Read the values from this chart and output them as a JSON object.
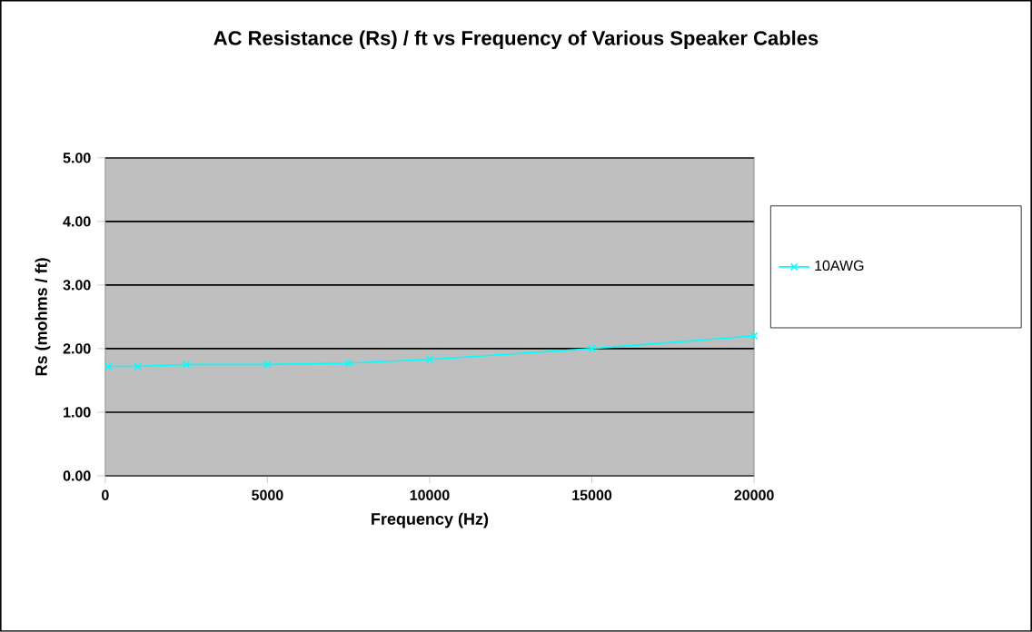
{
  "chart_data": {
    "type": "line",
    "title": "AC Resistance (Rs) / ft  vs Frequency of Various Speaker Cables",
    "xlabel": "Frequency (Hz)",
    "ylabel": "Rs (mohms / ft)",
    "series": [
      {
        "name": "10AWG",
        "color": "#00ffff",
        "x": [
          100,
          1000,
          2500,
          5000,
          7500,
          10000,
          15000,
          20000
        ],
        "values": [
          1.72,
          1.72,
          1.75,
          1.75,
          1.77,
          1.83,
          2.0,
          2.2
        ]
      }
    ],
    "xlim": [
      0,
      20000
    ],
    "xticks": [
      0,
      5000,
      10000,
      15000,
      20000
    ],
    "ylim": [
      0,
      5
    ],
    "yticks": [
      {
        "value": 0,
        "label": "0.00"
      },
      {
        "value": 1,
        "label": "1.00"
      },
      {
        "value": 2,
        "label": "2.00"
      },
      {
        "value": 3,
        "label": "3.00"
      },
      {
        "value": 4,
        "label": "4.00"
      },
      {
        "value": 5,
        "label": "5.00"
      }
    ],
    "grid": "y",
    "legend": "right",
    "marker": "cross",
    "line_style": "solid"
  }
}
